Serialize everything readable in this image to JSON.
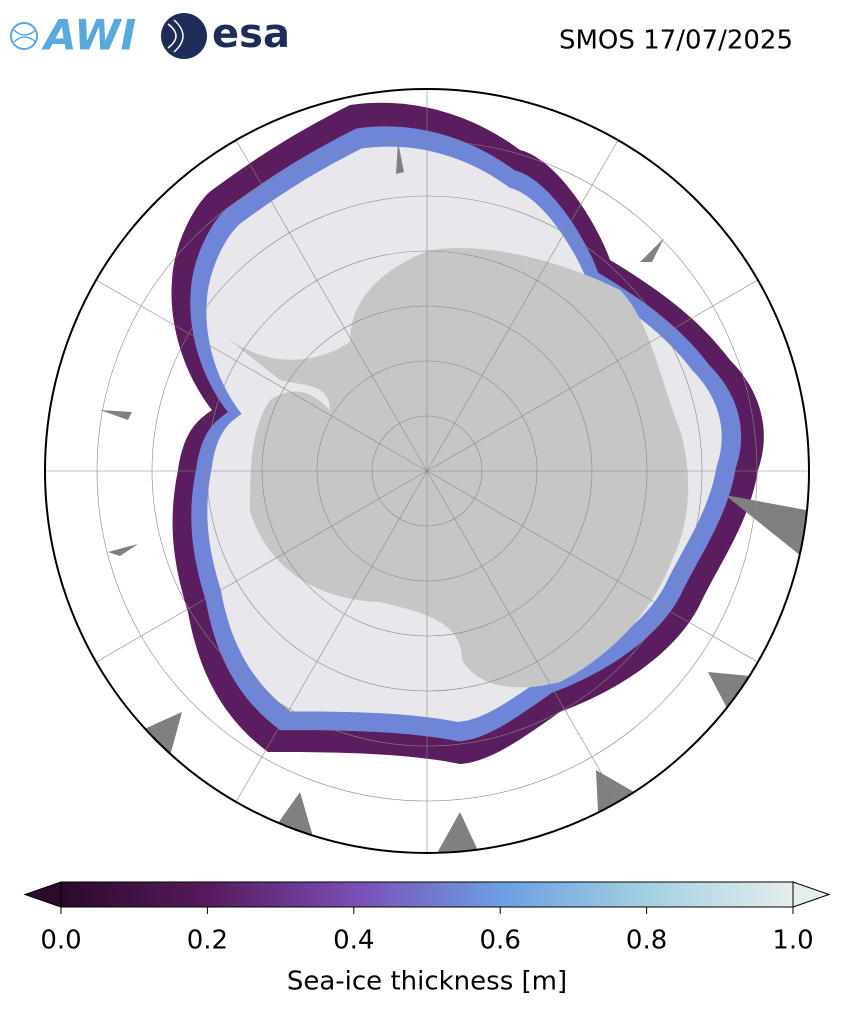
{
  "header": {
    "logos": [
      "AWI",
      "esa"
    ],
    "title": "SMOS 17/07/2025"
  },
  "colorbar": {
    "label": "Sea-ice thickness [m]",
    "lim": [
      0,
      1
    ],
    "ticks": [
      {
        "value": 0,
        "label": "0.0"
      },
      {
        "value": 0.2,
        "label": "0.2"
      },
      {
        "value": 0.4,
        "label": "0.4"
      },
      {
        "value": 0.6,
        "label": "0.6"
      },
      {
        "value": 0.8,
        "label": "0.8"
      },
      {
        "value": 1,
        "label": "1.0"
      }
    ],
    "colors": [
      "#2b0a2c",
      "#561a5c",
      "#7a4db4",
      "#6c9ee2",
      "#a2d0e0",
      "#e6eded"
    ]
  }
}
